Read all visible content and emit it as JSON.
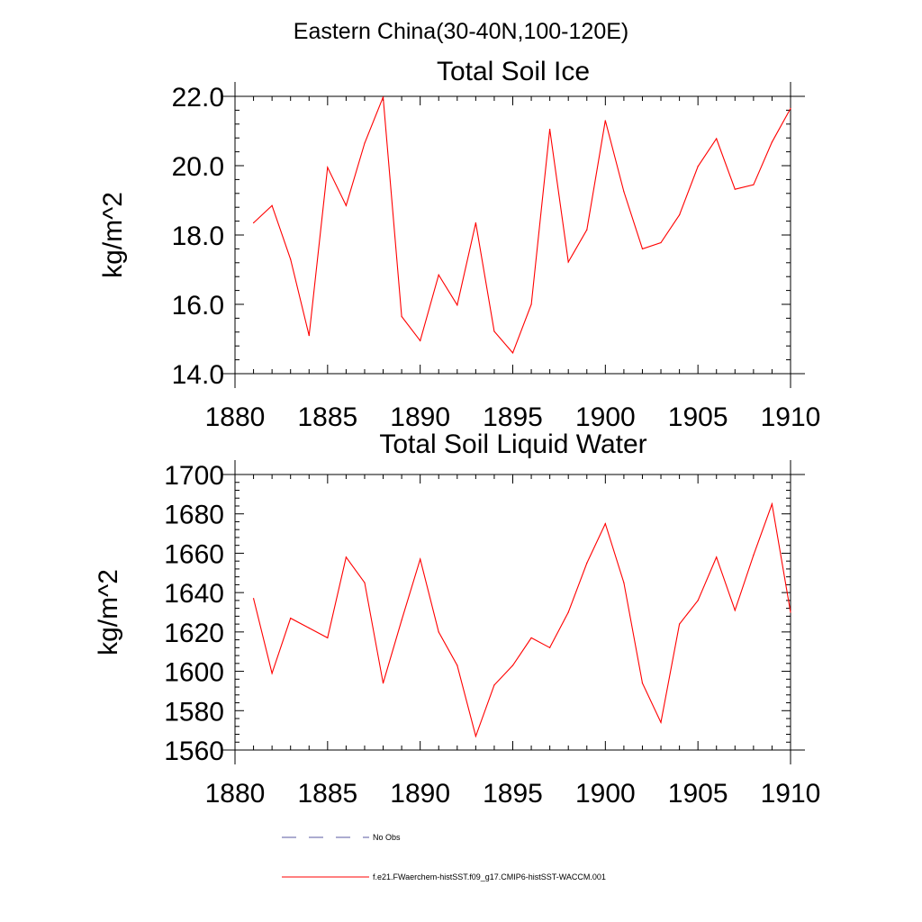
{
  "suptitle": "Eastern China(30-40N,100-120E)",
  "colors": {
    "series": "#ff0000",
    "obs": "#5a5aa0",
    "axis": "#000000"
  },
  "chart_data": [
    {
      "type": "line",
      "title": "Total Soil Ice",
      "xlabel": "",
      "ylabel": "kg/m^2",
      "xlim": [
        1880,
        1910
      ],
      "ylim": [
        14,
        22
      ],
      "xticks": [
        1880,
        1885,
        1890,
        1895,
        1900,
        1905,
        1910
      ],
      "yticks": [
        14,
        16,
        18,
        20,
        22
      ],
      "ytick_labels": [
        "14.0",
        "16.0",
        "18.0",
        "20.0",
        "22.0"
      ],
      "series": [
        {
          "name": "f.e21.FWaerchem-histSST.f09_g17.CMIP6-histSST-WACCM.001",
          "x": [
            1881,
            1882,
            1883,
            1884,
            1885,
            1886,
            1887,
            1888,
            1889,
            1890,
            1891,
            1892,
            1893,
            1894,
            1895,
            1896,
            1897,
            1898,
            1899,
            1900,
            1901,
            1902,
            1903,
            1904,
            1905,
            1906,
            1907,
            1908,
            1909,
            1910
          ],
          "y": [
            18.35,
            18.85,
            17.3,
            15.1,
            19.95,
            18.85,
            20.65,
            21.98,
            15.65,
            14.95,
            16.85,
            15.98,
            18.35,
            15.22,
            14.6,
            16.0,
            21.05,
            17.22,
            18.15,
            21.3,
            19.25,
            17.6,
            17.78,
            18.58,
            19.98,
            20.78,
            19.32,
            19.45,
            20.68,
            21.65
          ]
        }
      ]
    },
    {
      "type": "line",
      "title": "Total Soil Liquid Water",
      "xlabel": "",
      "ylabel": "kg/m^2",
      "xlim": [
        1880,
        1910
      ],
      "ylim": [
        1560,
        1700
      ],
      "xticks": [
        1880,
        1885,
        1890,
        1895,
        1900,
        1905,
        1910
      ],
      "yticks": [
        1560,
        1580,
        1600,
        1620,
        1640,
        1660,
        1680,
        1700
      ],
      "ytick_labels": [
        "1560",
        "1580",
        "1600",
        "1620",
        "1640",
        "1660",
        "1680",
        "1700"
      ],
      "series": [
        {
          "name": "f.e21.FWaerchem-histSST.f09_g17.CMIP6-histSST-WACCM.001",
          "x": [
            1881,
            1882,
            1883,
            1884,
            1885,
            1886,
            1887,
            1888,
            1889,
            1890,
            1891,
            1892,
            1893,
            1894,
            1895,
            1896,
            1897,
            1898,
            1899,
            1900,
            1901,
            1902,
            1903,
            1904,
            1905,
            1906,
            1907,
            1908,
            1909,
            1910
          ],
          "y": [
            1637,
            1599,
            1627,
            1622,
            1617,
            1658,
            1645,
            1594,
            1626,
            1657,
            1620,
            1603,
            1567,
            1593,
            1603,
            1617,
            1612,
            1630,
            1655,
            1675,
            1645,
            1594,
            1574,
            1624,
            1636,
            1658,
            1631,
            1659,
            1685,
            1630
          ]
        }
      ]
    }
  ],
  "legend": [
    {
      "label": "No Obs",
      "style": "dashed",
      "color": "#5a5aa0"
    },
    {
      "label": "f.e21.FWaerchem-histSST.f09_g17.CMIP6-histSST-WACCM.001",
      "style": "solid",
      "color": "#ff0000"
    }
  ]
}
